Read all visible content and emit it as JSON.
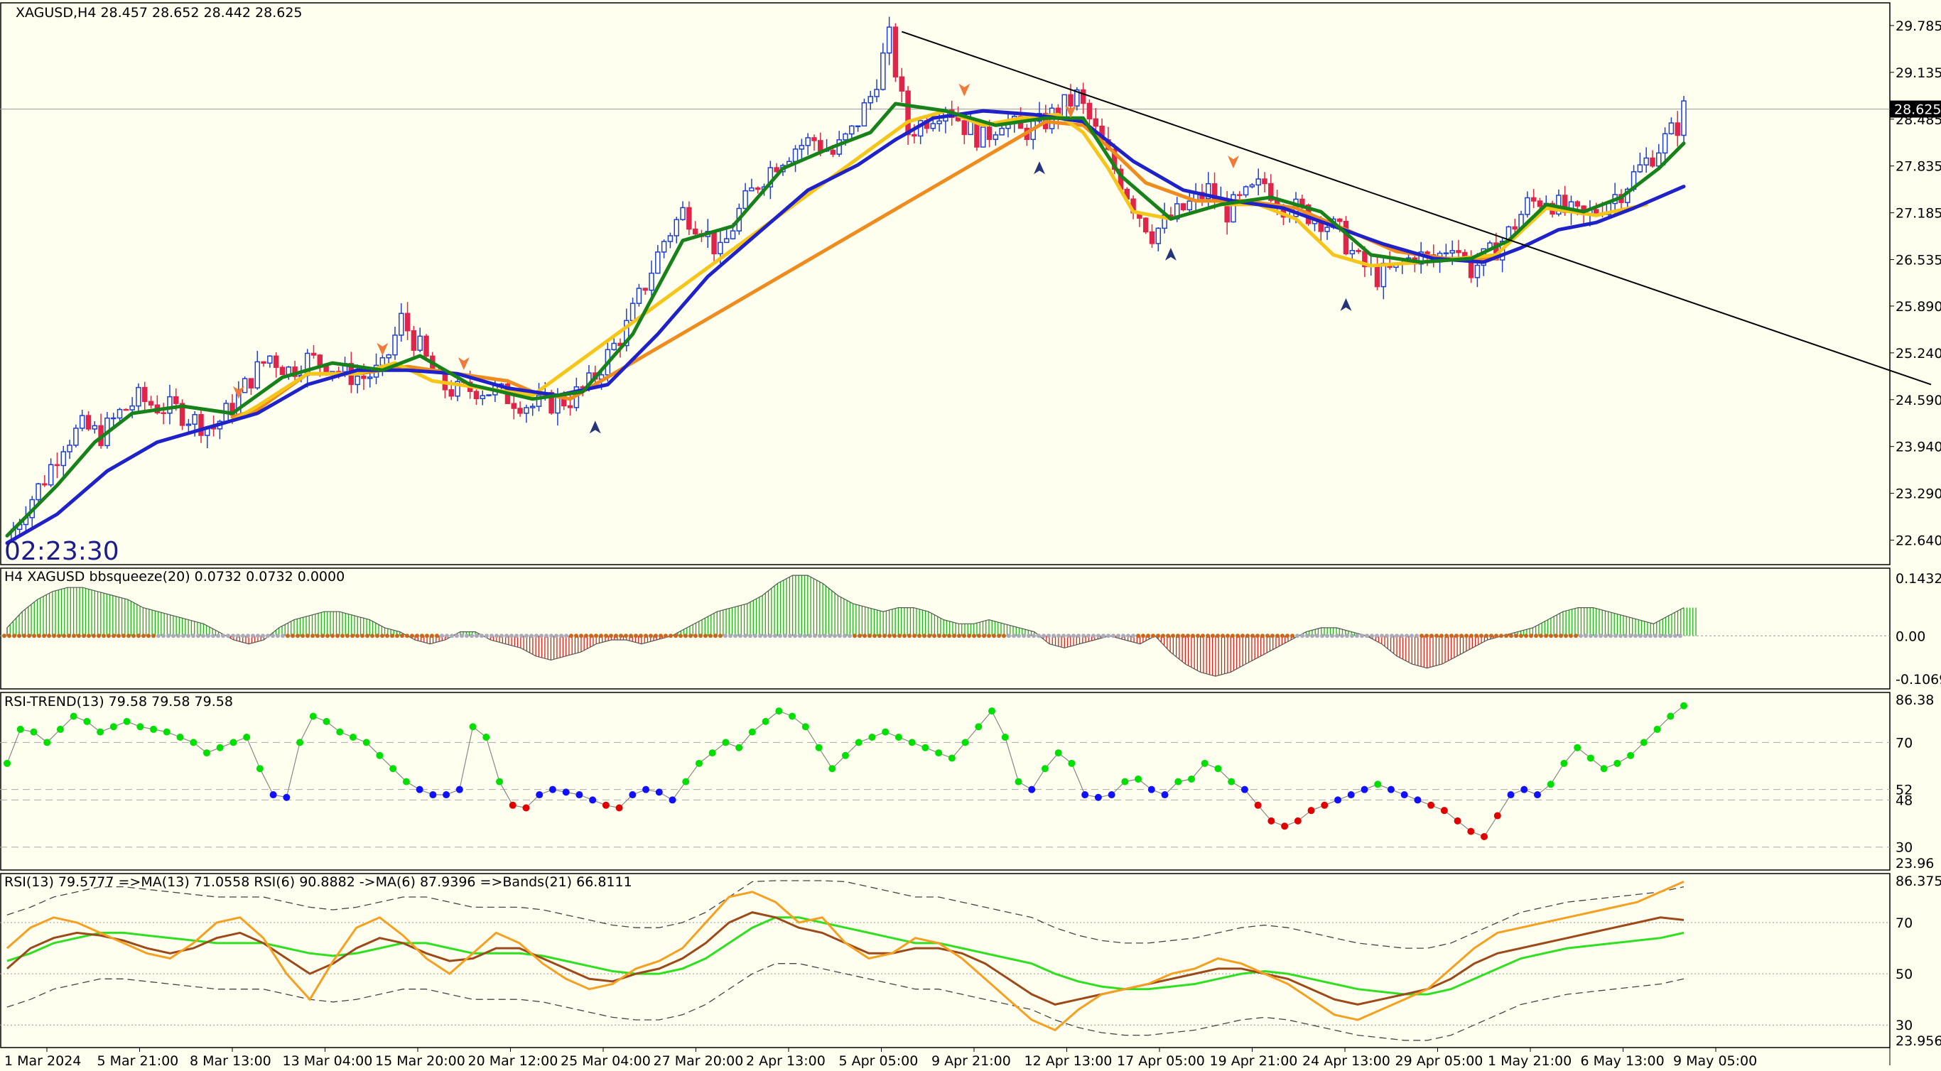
{
  "colors": {
    "background": "#fffff0",
    "bull_candle": "#1f3fd0",
    "bear_candle": "#e0244a",
    "ma_fast": "#17821a",
    "ma_slow": "#1f22c8",
    "ma_orange": "#f08c1e",
    "ma_yellow": "#f5c518",
    "trendline": "#000000",
    "hist_green": "#19b219",
    "hist_red": "#d82020",
    "rsi_green": "#00e000",
    "rsi_red": "#e00000",
    "rsi_blue": "#1010ff",
    "rsi_line_orange": "#f5a020",
    "rsi_line_brown": "#9c4a1a",
    "rsi_line_green": "#30e020"
  },
  "main": {
    "header": "XAGUSD,H4  28.457 28.652 28.442 28.625",
    "timer": "02:23:30",
    "current_price": "28.625",
    "price_ticks": [
      "29.785",
      "29.135",
      "28.485",
      "27.835",
      "27.185",
      "26.535",
      "25.890",
      "25.240",
      "24.590",
      "23.940",
      "23.290",
      "22.640"
    ]
  },
  "time_axis": [
    "1 Mar 2024",
    "5 Mar 21:00",
    "8 Mar 13:00",
    "13 Mar 04:00",
    "15 Mar 20:00",
    "20 Mar 12:00",
    "25 Mar 04:00",
    "27 Mar 20:00",
    "2 Apr 13:00",
    "5 Apr 05:00",
    "9 Apr 21:00",
    "12 Apr 13:00",
    "17 Apr 05:00",
    "19 Apr 21:00",
    "24 Apr 13:00",
    "29 Apr 05:00",
    "1 May 21:00",
    "6 May 13:00",
    "9 May 05:00"
  ],
  "panel_bbsqueeze": {
    "header": "H4 XAGUSD bbsqueeze(20) 0.0732 0.0732 0.0000",
    "ticks": [
      "0.1432",
      "0.00",
      "-0.1069"
    ]
  },
  "panel_rsi_trend": {
    "header": "RSI-TREND(13) 79.58 79.58 79.58",
    "ticks": [
      "86.38",
      "70",
      "52",
      "48",
      "30",
      "23.96"
    ]
  },
  "panel_rsi": {
    "header": "RSI(13) 79.5777  =>MA(13) 71.0558  RSI(6) 90.8882  ->MA(6) 87.9396  =>Bands(21) 66.8111",
    "ticks": [
      "86.3757",
      "70",
      "50",
      "30",
      "23.9565"
    ]
  },
  "chart_data": {
    "type": "line",
    "symbol": "XAGUSD",
    "timeframe": "H4",
    "ylim": [
      22.3,
      30.1
    ],
    "close_path": [
      [
        0,
        22.64
      ],
      [
        3,
        23.1
      ],
      [
        6,
        23.5
      ],
      [
        9,
        24.0
      ],
      [
        12,
        24.2
      ],
      [
        15,
        24.1
      ],
      [
        18,
        24.4
      ],
      [
        21,
        24.6
      ],
      [
        24,
        24.5
      ],
      [
        27,
        24.45
      ],
      [
        30,
        24.3
      ],
      [
        33,
        24.2
      ],
      [
        36,
        24.5
      ],
      [
        39,
        24.9
      ],
      [
        42,
        25.2
      ],
      [
        45,
        25.0
      ],
      [
        48,
        25.15
      ],
      [
        51,
        25.1
      ],
      [
        54,
        24.95
      ],
      [
        57,
        24.9
      ],
      [
        60,
        25.0
      ],
      [
        63,
        25.7
      ],
      [
        66,
        25.3
      ],
      [
        69,
        24.8
      ],
      [
        72,
        24.7
      ],
      [
        75,
        24.75
      ],
      [
        78,
        24.7
      ],
      [
        81,
        24.6
      ],
      [
        84,
        24.5
      ],
      [
        87,
        24.55
      ],
      [
        90,
        24.6
      ],
      [
        93,
        24.8
      ],
      [
        96,
        25.2
      ],
      [
        99,
        25.6
      ],
      [
        102,
        26.2
      ],
      [
        105,
        26.8
      ],
      [
        108,
        27.2
      ],
      [
        111,
        27.0
      ],
      [
        114,
        26.6
      ],
      [
        117,
        27.2
      ],
      [
        120,
        27.6
      ],
      [
        123,
        27.9
      ],
      [
        126,
        28.1
      ],
      [
        129,
        28.2
      ],
      [
        132,
        28.0
      ],
      [
        135,
        28.3
      ],
      [
        138,
        28.8
      ],
      [
        141,
        29.6
      ],
      [
        144,
        28.3
      ],
      [
        147,
        28.5
      ],
      [
        150,
        28.7
      ],
      [
        153,
        28.4
      ],
      [
        156,
        28.2
      ],
      [
        159,
        28.5
      ],
      [
        162,
        28.3
      ],
      [
        165,
        28.4
      ],
      [
        168,
        28.6
      ],
      [
        171,
        28.8
      ],
      [
        174,
        28.3
      ],
      [
        177,
        27.8
      ],
      [
        180,
        27.3
      ],
      [
        183,
        26.9
      ],
      [
        186,
        27.1
      ],
      [
        189,
        27.3
      ],
      [
        192,
        27.5
      ],
      [
        195,
        27.2
      ],
      [
        198,
        27.4
      ],
      [
        201,
        27.6
      ],
      [
        204,
        27.3
      ],
      [
        207,
        27.2
      ],
      [
        210,
        27.1
      ],
      [
        213,
        26.9
      ],
      [
        216,
        26.5
      ],
      [
        219,
        26.3
      ],
      [
        222,
        26.4
      ],
      [
        225,
        26.6
      ],
      [
        228,
        26.5
      ],
      [
        231,
        26.8
      ],
      [
        234,
        26.4
      ],
      [
        237,
        26.6
      ],
      [
        240,
        26.9
      ],
      [
        243,
        27.3
      ],
      [
        246,
        27.4
      ],
      [
        249,
        27.2
      ],
      [
        252,
        27.1
      ],
      [
        255,
        27.3
      ],
      [
        258,
        27.5
      ],
      [
        261,
        27.8
      ],
      [
        264,
        28.1
      ],
      [
        267,
        28.4
      ],
      [
        268,
        28.625
      ]
    ],
    "ma_fast": [
      [
        0,
        22.7
      ],
      [
        8,
        23.4
      ],
      [
        14,
        24.0
      ],
      [
        20,
        24.4
      ],
      [
        28,
        24.5
      ],
      [
        36,
        24.4
      ],
      [
        44,
        24.9
      ],
      [
        52,
        25.1
      ],
      [
        60,
        25.0
      ],
      [
        66,
        25.2
      ],
      [
        74,
        24.8
      ],
      [
        84,
        24.6
      ],
      [
        92,
        24.7
      ],
      [
        100,
        25.5
      ],
      [
        108,
        26.8
      ],
      [
        116,
        27.0
      ],
      [
        124,
        27.8
      ],
      [
        132,
        28.1
      ],
      [
        138,
        28.3
      ],
      [
        142,
        28.7
      ],
      [
        150,
        28.6
      ],
      [
        158,
        28.4
      ],
      [
        166,
        28.5
      ],
      [
        172,
        28.5
      ],
      [
        178,
        27.7
      ],
      [
        186,
        27.1
      ],
      [
        194,
        27.3
      ],
      [
        202,
        27.4
      ],
      [
        210,
        27.2
      ],
      [
        218,
        26.6
      ],
      [
        226,
        26.5
      ],
      [
        234,
        26.55
      ],
      [
        240,
        26.8
      ],
      [
        246,
        27.3
      ],
      [
        252,
        27.2
      ],
      [
        258,
        27.4
      ],
      [
        264,
        27.8
      ],
      [
        268,
        28.15
      ]
    ],
    "ma_slow": [
      [
        0,
        22.6
      ],
      [
        8,
        23.0
      ],
      [
        16,
        23.6
      ],
      [
        24,
        24.0
      ],
      [
        32,
        24.2
      ],
      [
        40,
        24.4
      ],
      [
        48,
        24.8
      ],
      [
        56,
        25.0
      ],
      [
        64,
        25.0
      ],
      [
        72,
        24.95
      ],
      [
        80,
        24.75
      ],
      [
        88,
        24.65
      ],
      [
        96,
        24.8
      ],
      [
        104,
        25.5
      ],
      [
        112,
        26.3
      ],
      [
        120,
        26.9
      ],
      [
        128,
        27.5
      ],
      [
        136,
        27.85
      ],
      [
        142,
        28.2
      ],
      [
        148,
        28.5
      ],
      [
        156,
        28.6
      ],
      [
        164,
        28.55
      ],
      [
        172,
        28.45
      ],
      [
        180,
        27.9
      ],
      [
        188,
        27.5
      ],
      [
        196,
        27.35
      ],
      [
        204,
        27.25
      ],
      [
        212,
        27.0
      ],
      [
        220,
        26.75
      ],
      [
        228,
        26.55
      ],
      [
        236,
        26.5
      ],
      [
        242,
        26.7
      ],
      [
        248,
        26.95
      ],
      [
        254,
        27.05
      ],
      [
        260,
        27.25
      ],
      [
        268,
        27.55
      ]
    ],
    "ma_orange": [
      [
        36,
        24.35
      ],
      [
        40,
        24.45
      ],
      [
        48,
        24.95
      ],
      [
        56,
        24.95
      ],
      [
        64,
        25.05
      ],
      [
        72,
        24.95
      ],
      [
        80,
        24.85
      ],
      [
        84,
        24.7
      ],
      [
        90,
        24.6
      ],
      [
        166,
        28.45
      ],
      [
        172,
        28.4
      ],
      [
        176,
        28.1
      ],
      [
        182,
        27.6
      ],
      [
        190,
        27.35
      ],
      [
        198,
        27.35
      ],
      [
        206,
        27.25
      ],
      [
        214,
        26.95
      ],
      [
        222,
        26.65
      ],
      [
        230,
        26.55
      ],
      [
        238,
        26.55
      ]
    ],
    "ma_yellow": [
      [
        36,
        24.3
      ],
      [
        40,
        24.5
      ],
      [
        48,
        24.95
      ],
      [
        56,
        24.95
      ],
      [
        62,
        25.1
      ],
      [
        68,
        24.85
      ],
      [
        76,
        24.75
      ],
      [
        84,
        24.65
      ],
      [
        144,
        28.45
      ],
      [
        150,
        28.6
      ],
      [
        156,
        28.4
      ],
      [
        162,
        28.5
      ],
      [
        168,
        28.55
      ],
      [
        172,
        28.3
      ],
      [
        176,
        27.8
      ],
      [
        180,
        27.2
      ],
      [
        186,
        27.1
      ],
      [
        194,
        27.3
      ],
      [
        200,
        27.3
      ],
      [
        206,
        27.1
      ],
      [
        212,
        26.6
      ],
      [
        218,
        26.45
      ],
      [
        226,
        26.5
      ],
      [
        232,
        26.55
      ],
      [
        238,
        26.6
      ],
      [
        246,
        27.25
      ],
      [
        254,
        27.15
      ],
      [
        262,
        27.3
      ]
    ],
    "trendline": [
      [
        143,
        29.7
      ],
      [
        268,
        24.8
      ]
    ],
    "squeeze_hist": [
      0.02,
      0.06,
      0.09,
      0.11,
      0.12,
      0.12,
      0.11,
      0.1,
      0.09,
      0.07,
      0.06,
      0.05,
      0.04,
      0.03,
      0.01,
      -0.01,
      -0.02,
      -0.01,
      0.02,
      0.04,
      0.05,
      0.06,
      0.06,
      0.05,
      0.04,
      0.02,
      0.01,
      -0.01,
      -0.02,
      -0.01,
      0.01,
      0.01,
      -0.01,
      -0.02,
      -0.03,
      -0.05,
      -0.06,
      -0.05,
      -0.04,
      -0.02,
      -0.01,
      -0.01,
      -0.02,
      -0.01,
      0.0,
      0.02,
      0.04,
      0.06,
      0.07,
      0.08,
      0.1,
      0.13,
      0.15,
      0.15,
      0.13,
      0.1,
      0.08,
      0.07,
      0.06,
      0.07,
      0.07,
      0.06,
      0.04,
      0.03,
      0.03,
      0.04,
      0.03,
      0.02,
      0.01,
      -0.02,
      -0.03,
      -0.02,
      -0.01,
      0.0,
      -0.01,
      -0.02,
      0.0,
      -0.04,
      -0.07,
      -0.09,
      -0.1,
      -0.09,
      -0.07,
      -0.05,
      -0.03,
      -0.01,
      0.01,
      0.02,
      0.02,
      0.01,
      0.0,
      -0.02,
      -0.05,
      -0.07,
      -0.08,
      -0.07,
      -0.05,
      -0.03,
      -0.01,
      0.0,
      0.01,
      0.02,
      0.04,
      0.06,
      0.07,
      0.07,
      0.06,
      0.05,
      0.04,
      0.03,
      0.05,
      0.07
    ],
    "rsi_trend": [
      62,
      75,
      74,
      70,
      75,
      80,
      78,
      74,
      76,
      78,
      76,
      75,
      74,
      72,
      70,
      66,
      68,
      70,
      72,
      60,
      50,
      49,
      70,
      80,
      78,
      74,
      72,
      70,
      65,
      60,
      55,
      52,
      50,
      50,
      52,
      76,
      72,
      55,
      46,
      45,
      50,
      52,
      51,
      50,
      48,
      46,
      45,
      50,
      52,
      51,
      48,
      55,
      62,
      66,
      70,
      68,
      74,
      78,
      82,
      80,
      76,
      68,
      60,
      65,
      70,
      72,
      74,
      72,
      70,
      68,
      66,
      64,
      70,
      76,
      82,
      72,
      55,
      52,
      60,
      66,
      62,
      50,
      49,
      50,
      55,
      56,
      52,
      50,
      55,
      56,
      62,
      60,
      55,
      52,
      46,
      40,
      38,
      40,
      44,
      46,
      48,
      50,
      52,
      54,
      52,
      50,
      48,
      46,
      44,
      40,
      36,
      34,
      42,
      50,
      52,
      50,
      54,
      62,
      68,
      64,
      60,
      62,
      65,
      70,
      75,
      80,
      84
    ],
    "rsi_orange": [
      60,
      68,
      72,
      70,
      66,
      62,
      58,
      56,
      62,
      70,
      72,
      64,
      50,
      40,
      55,
      68,
      72,
      65,
      56,
      50,
      58,
      66,
      62,
      54,
      48,
      44,
      46,
      52,
      55,
      60,
      70,
      80,
      82,
      78,
      70,
      72,
      62,
      56,
      58,
      64,
      62,
      56,
      48,
      40,
      32,
      28,
      36,
      42,
      44,
      46,
      50,
      52,
      56,
      54,
      50,
      46,
      40,
      34,
      32,
      36,
      40,
      44,
      52,
      60,
      66,
      68,
      70,
      72,
      74,
      76,
      78,
      82,
      86
    ],
    "rsi_brown": [
      52,
      60,
      64,
      66,
      65,
      63,
      60,
      58,
      60,
      64,
      66,
      62,
      56,
      50,
      54,
      60,
      64,
      62,
      58,
      55,
      56,
      60,
      60,
      56,
      52,
      48,
      47,
      50,
      52,
      56,
      62,
      70,
      74,
      72,
      68,
      66,
      62,
      58,
      58,
      60,
      60,
      58,
      54,
      48,
      42,
      38,
      40,
      42,
      44,
      46,
      48,
      50,
      52,
      52,
      50,
      48,
      44,
      40,
      38,
      40,
      42,
      44,
      48,
      54,
      58,
      60,
      62,
      64,
      66,
      68,
      70,
      72,
      71
    ],
    "rsi_green_ma": [
      55,
      58,
      62,
      64,
      66,
      66,
      65,
      64,
      63,
      62,
      62,
      62,
      60,
      58,
      57,
      58,
      60,
      62,
      62,
      60,
      58,
      58,
      58,
      57,
      55,
      53,
      51,
      50,
      50,
      52,
      56,
      62,
      68,
      72,
      72,
      70,
      68,
      66,
      64,
      62,
      62,
      60,
      58,
      56,
      54,
      50,
      47,
      45,
      44,
      44,
      45,
      46,
      48,
      50,
      51,
      50,
      48,
      46,
      44,
      43,
      42,
      42,
      44,
      48,
      52,
      56,
      58,
      60,
      61,
      62,
      63,
      64,
      66
    ]
  }
}
